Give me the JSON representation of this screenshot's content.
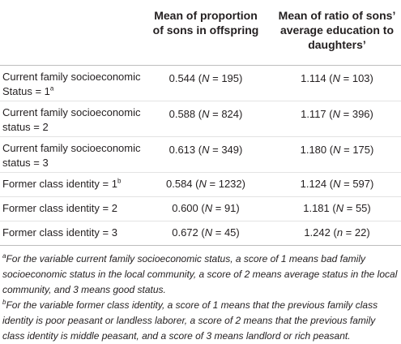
{
  "table": {
    "headers": [
      "Mean of proportion of sons in offspring",
      "Mean of ratio of sons’ average education to daughters’"
    ],
    "rows": [
      {
        "label_main": "Current family socioeconomic Status = 1",
        "label_sup": "a",
        "v1_num": "0.544",
        "v1_nvar": "N",
        "v1_nval": "195",
        "v2_num": "1.114",
        "v2_nvar": "N",
        "v2_nval": "103"
      },
      {
        "label_main": "Current family socioeconomic status = 2",
        "label_sup": "",
        "v1_num": "0.588",
        "v1_nvar": "N",
        "v1_nval": "824",
        "v2_num": "1.117",
        "v2_nvar": "N",
        "v2_nval": "396"
      },
      {
        "label_main": "Current family socioeconomic status = 3",
        "label_sup": "",
        "v1_num": "0.613",
        "v1_nvar": "N",
        "v1_nval": "349",
        "v2_num": "1.180",
        "v2_nvar": "N",
        "v2_nval": "175"
      },
      {
        "label_main": "Former class identity = 1",
        "label_sup": "b",
        "v1_num": "0.584",
        "v1_nvar": "N",
        "v1_nval": "1232",
        "v2_num": "1.124",
        "v2_nvar": "N",
        "v2_nval": "597"
      },
      {
        "label_main": "Former class identity = 2",
        "label_sup": "",
        "v1_num": "0.600",
        "v1_nvar": "N",
        "v1_nval": "91",
        "v2_num": "1.181",
        "v2_nvar": "N",
        "v2_nval": "55"
      },
      {
        "label_main": "Former class identity = 3",
        "label_sup": "",
        "v1_num": "0.672",
        "v1_nvar": "N",
        "v1_nval": "45",
        "v2_num": "1.242",
        "v2_nvar": "n",
        "v2_nval": "22"
      }
    ]
  },
  "footnotes": [
    {
      "marker": "a",
      "text": "For the variable current family socioeconomic status, a score of 1 means bad family socioeconomic status in the local community, a score of 2 means average status in the local community, and 3 means good status."
    },
    {
      "marker": "b",
      "text": "For the variable former class identity, a score of 1 means that the previous family class identity is poor peasant or landless laborer, a score of 2 means that the previous family class identity is middle peasant, and a score of 3 means landlord or rich peasant."
    }
  ]
}
